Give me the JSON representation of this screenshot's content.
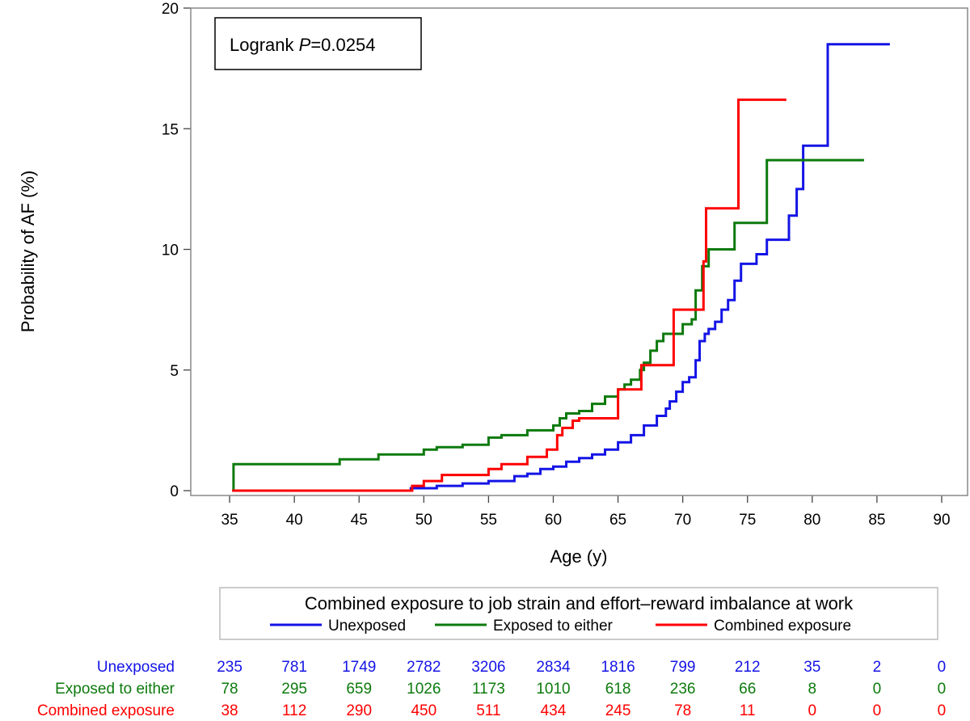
{
  "chart_data": {
    "type": "line",
    "step": true,
    "title": "",
    "xlabel": "Age (y)",
    "ylabel": "Probability of AF (%)",
    "xlim": [
      32,
      92
    ],
    "ylim": [
      -0.2,
      20
    ],
    "xticks": [
      35,
      40,
      45,
      50,
      55,
      60,
      65,
      70,
      75,
      80,
      85,
      90
    ],
    "yticks": [
      0,
      5,
      10,
      15,
      20
    ],
    "annotation": {
      "prefix": "Logrank ",
      "italic": "P",
      "suffix": "=0.0254"
    },
    "legend": {
      "title": "Combined exposure to job strain and effort–reward imbalance at work",
      "position": "bottom"
    },
    "series": [
      {
        "name": "Unexposed",
        "color": "#1414e6",
        "points": [
          [
            35.2,
            0
          ],
          [
            48.3,
            0
          ],
          [
            49,
            0.1
          ],
          [
            51,
            0.2
          ],
          [
            53,
            0.3
          ],
          [
            55,
            0.4
          ],
          [
            57,
            0.6
          ],
          [
            58,
            0.7
          ],
          [
            59,
            0.9
          ],
          [
            60,
            1.0
          ],
          [
            61,
            1.2
          ],
          [
            62,
            1.35
          ],
          [
            63,
            1.5
          ],
          [
            64,
            1.7
          ],
          [
            65,
            2.0
          ],
          [
            66,
            2.3
          ],
          [
            67,
            2.7
          ],
          [
            68,
            3.1
          ],
          [
            68.7,
            3.4
          ],
          [
            69,
            3.7
          ],
          [
            69.5,
            4.1
          ],
          [
            70,
            4.5
          ],
          [
            70.5,
            4.7
          ],
          [
            71,
            5.4
          ],
          [
            71.3,
            6.2
          ],
          [
            71.7,
            6.5
          ],
          [
            72,
            6.7
          ],
          [
            72.5,
            7.0
          ],
          [
            73,
            7.5
          ],
          [
            73.5,
            7.9
          ],
          [
            74,
            8.7
          ],
          [
            74.5,
            9.4
          ],
          [
            75,
            9.4
          ],
          [
            75.7,
            9.8
          ],
          [
            76.5,
            10.4
          ],
          [
            78,
            10.4
          ],
          [
            78.2,
            11.4
          ],
          [
            78.8,
            12.5
          ],
          [
            79.3,
            14.3
          ],
          [
            81,
            14.3
          ],
          [
            81.2,
            18.5
          ],
          [
            86,
            18.5
          ]
        ]
      },
      {
        "name": "Exposed to either",
        "color": "#0d7a0d",
        "points": [
          [
            35.2,
            0
          ],
          [
            35.3,
            1.1
          ],
          [
            43.3,
            1.1
          ],
          [
            43.5,
            1.3
          ],
          [
            46.5,
            1.5
          ],
          [
            49,
            1.5
          ],
          [
            50,
            1.7
          ],
          [
            51,
            1.8
          ],
          [
            53,
            1.9
          ],
          [
            55,
            2.2
          ],
          [
            56,
            2.3
          ],
          [
            58,
            2.5
          ],
          [
            60,
            2.7
          ],
          [
            60.5,
            3.0
          ],
          [
            61,
            3.2
          ],
          [
            62,
            3.3
          ],
          [
            63,
            3.6
          ],
          [
            64,
            3.9
          ],
          [
            65,
            4.2
          ],
          [
            65.5,
            4.4
          ],
          [
            66,
            4.6
          ],
          [
            66.7,
            5.0
          ],
          [
            67,
            5.3
          ],
          [
            67.5,
            5.8
          ],
          [
            68,
            6.2
          ],
          [
            68.5,
            6.5
          ],
          [
            69.5,
            6.5
          ],
          [
            70,
            6.9
          ],
          [
            70.7,
            7.1
          ],
          [
            71,
            8.3
          ],
          [
            71.5,
            9.3
          ],
          [
            72,
            10.0
          ],
          [
            73.5,
            10.0
          ],
          [
            74,
            11.1
          ],
          [
            76.3,
            11.1
          ],
          [
            76.5,
            13.7
          ],
          [
            84,
            13.7
          ]
        ]
      },
      {
        "name": "Combined exposure",
        "color": "#ff0000",
        "points": [
          [
            35.2,
            0
          ],
          [
            48.9,
            0
          ],
          [
            49.1,
            0.2
          ],
          [
            50,
            0.4
          ],
          [
            51.4,
            0.65
          ],
          [
            55,
            0.9
          ],
          [
            56,
            1.1
          ],
          [
            58,
            1.4
          ],
          [
            59.5,
            1.7
          ],
          [
            60.3,
            2.3
          ],
          [
            60.7,
            2.6
          ],
          [
            61.5,
            2.9
          ],
          [
            62,
            3.0
          ],
          [
            64.8,
            3.0
          ],
          [
            65,
            4.2
          ],
          [
            66.6,
            4.2
          ],
          [
            66.8,
            5.2
          ],
          [
            69.1,
            5.2
          ],
          [
            69.3,
            7.5
          ],
          [
            71.4,
            7.5
          ],
          [
            71.6,
            9.5
          ],
          [
            71.8,
            11.7
          ],
          [
            74.1,
            11.7
          ],
          [
            74.3,
            16.2
          ],
          [
            78,
            16.2
          ]
        ]
      }
    ],
    "risk_table": {
      "times": [
        35,
        40,
        45,
        50,
        55,
        60,
        65,
        70,
        75,
        80,
        85,
        90
      ],
      "rows": [
        {
          "label": "Unexposed",
          "values": [
            "235",
            "781",
            "1749",
            "2782",
            "3206",
            "2834",
            "1816",
            "799",
            "212",
            "35",
            "2",
            "0"
          ]
        },
        {
          "label": "Exposed to either",
          "values": [
            "78",
            "295",
            "659",
            "1026",
            "1173",
            "1010",
            "618",
            "236",
            "66",
            "8",
            "0",
            "0"
          ]
        },
        {
          "label": "Combined exposure",
          "values": [
            "38",
            "112",
            "290",
            "450",
            "511",
            "434",
            "245",
            "78",
            "11",
            "0",
            "0",
            "0"
          ]
        }
      ]
    }
  }
}
